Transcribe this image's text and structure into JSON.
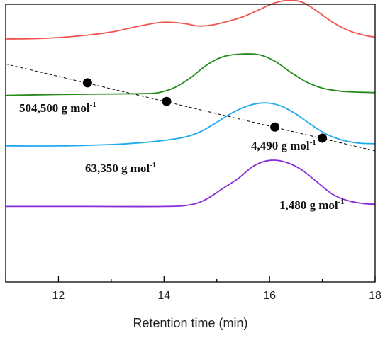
{
  "chart_data": {
    "type": "line",
    "xlabel": "Retention time (min)",
    "xlim": [
      11,
      18
    ],
    "ylim": [
      0,
      10
    ],
    "xticks": [
      12,
      14,
      16,
      18
    ],
    "y_axis_visible": false,
    "grid": false,
    "series": [
      {
        "color": "#f0554f",
        "values": [
          [
            11,
            8.75
          ],
          [
            11.5,
            8.76
          ],
          [
            12,
            8.8
          ],
          [
            12.5,
            8.88
          ],
          [
            13,
            9.0
          ],
          [
            13.3,
            9.12
          ],
          [
            13.6,
            9.24
          ],
          [
            13.9,
            9.34
          ],
          [
            14.15,
            9.35
          ],
          [
            14.4,
            9.3
          ],
          [
            14.65,
            9.22
          ],
          [
            14.9,
            9.25
          ],
          [
            15.2,
            9.38
          ],
          [
            15.5,
            9.55
          ],
          [
            15.8,
            9.8
          ],
          [
            16.1,
            10.05
          ],
          [
            16.4,
            10.15
          ],
          [
            16.65,
            10.05
          ],
          [
            16.9,
            9.75
          ],
          [
            17.2,
            9.35
          ],
          [
            17.5,
            9.05
          ],
          [
            17.8,
            8.88
          ],
          [
            18,
            8.82
          ]
        ]
      },
      {
        "color": "#25891c",
        "values": [
          [
            11,
            6.72
          ],
          [
            12,
            6.75
          ],
          [
            13,
            6.77
          ],
          [
            13.6,
            6.78
          ],
          [
            13.9,
            6.82
          ],
          [
            14.2,
            7.0
          ],
          [
            14.5,
            7.35
          ],
          [
            14.8,
            7.8
          ],
          [
            15.1,
            8.1
          ],
          [
            15.4,
            8.2
          ],
          [
            15.8,
            8.18
          ],
          [
            16.1,
            7.95
          ],
          [
            16.4,
            7.55
          ],
          [
            16.7,
            7.2
          ],
          [
            17.0,
            6.98
          ],
          [
            17.3,
            6.88
          ],
          [
            17.6,
            6.84
          ],
          [
            18,
            6.82
          ]
        ]
      },
      {
        "color": "#20aaee",
        "values": [
          [
            11,
            4.9
          ],
          [
            12,
            4.9
          ],
          [
            13,
            4.95
          ],
          [
            13.6,
            5.02
          ],
          [
            14.0,
            5.1
          ],
          [
            14.4,
            5.22
          ],
          [
            14.7,
            5.42
          ],
          [
            15.0,
            5.75
          ],
          [
            15.3,
            6.1
          ],
          [
            15.6,
            6.35
          ],
          [
            15.9,
            6.45
          ],
          [
            16.2,
            6.35
          ],
          [
            16.5,
            6.05
          ],
          [
            16.8,
            5.65
          ],
          [
            17.1,
            5.3
          ],
          [
            17.4,
            5.1
          ],
          [
            17.7,
            5.0
          ],
          [
            18,
            4.98
          ]
        ]
      },
      {
        "color": "#8a2bd6",
        "values": [
          [
            11,
            2.72
          ],
          [
            12.5,
            2.72
          ],
          [
            14,
            2.72
          ],
          [
            14.5,
            2.78
          ],
          [
            14.8,
            2.98
          ],
          [
            15.1,
            3.35
          ],
          [
            15.4,
            3.72
          ],
          [
            15.7,
            4.18
          ],
          [
            16.0,
            4.38
          ],
          [
            16.3,
            4.32
          ],
          [
            16.6,
            4.05
          ],
          [
            16.9,
            3.6
          ],
          [
            17.2,
            3.15
          ],
          [
            17.5,
            2.92
          ],
          [
            17.8,
            2.82
          ],
          [
            18,
            2.8
          ]
        ]
      }
    ],
    "calibration": {
      "line": [
        [
          11,
          7.85
        ],
        [
          18,
          4.72
        ]
      ],
      "points": [
        [
          12.55,
          7.17
        ],
        [
          14.05,
          6.5
        ],
        [
          16.1,
          5.58
        ],
        [
          17.0,
          5.18
        ]
      ],
      "labels": [
        {
          "main": "504,500 g mol",
          "sup": "-1"
        },
        {
          "main": "63,350 g mol",
          "sup": "-1"
        },
        {
          "main": "4,490 g mol",
          "sup": "-1"
        },
        {
          "main": "1,480 g mol",
          "sup": "-1"
        }
      ]
    }
  }
}
